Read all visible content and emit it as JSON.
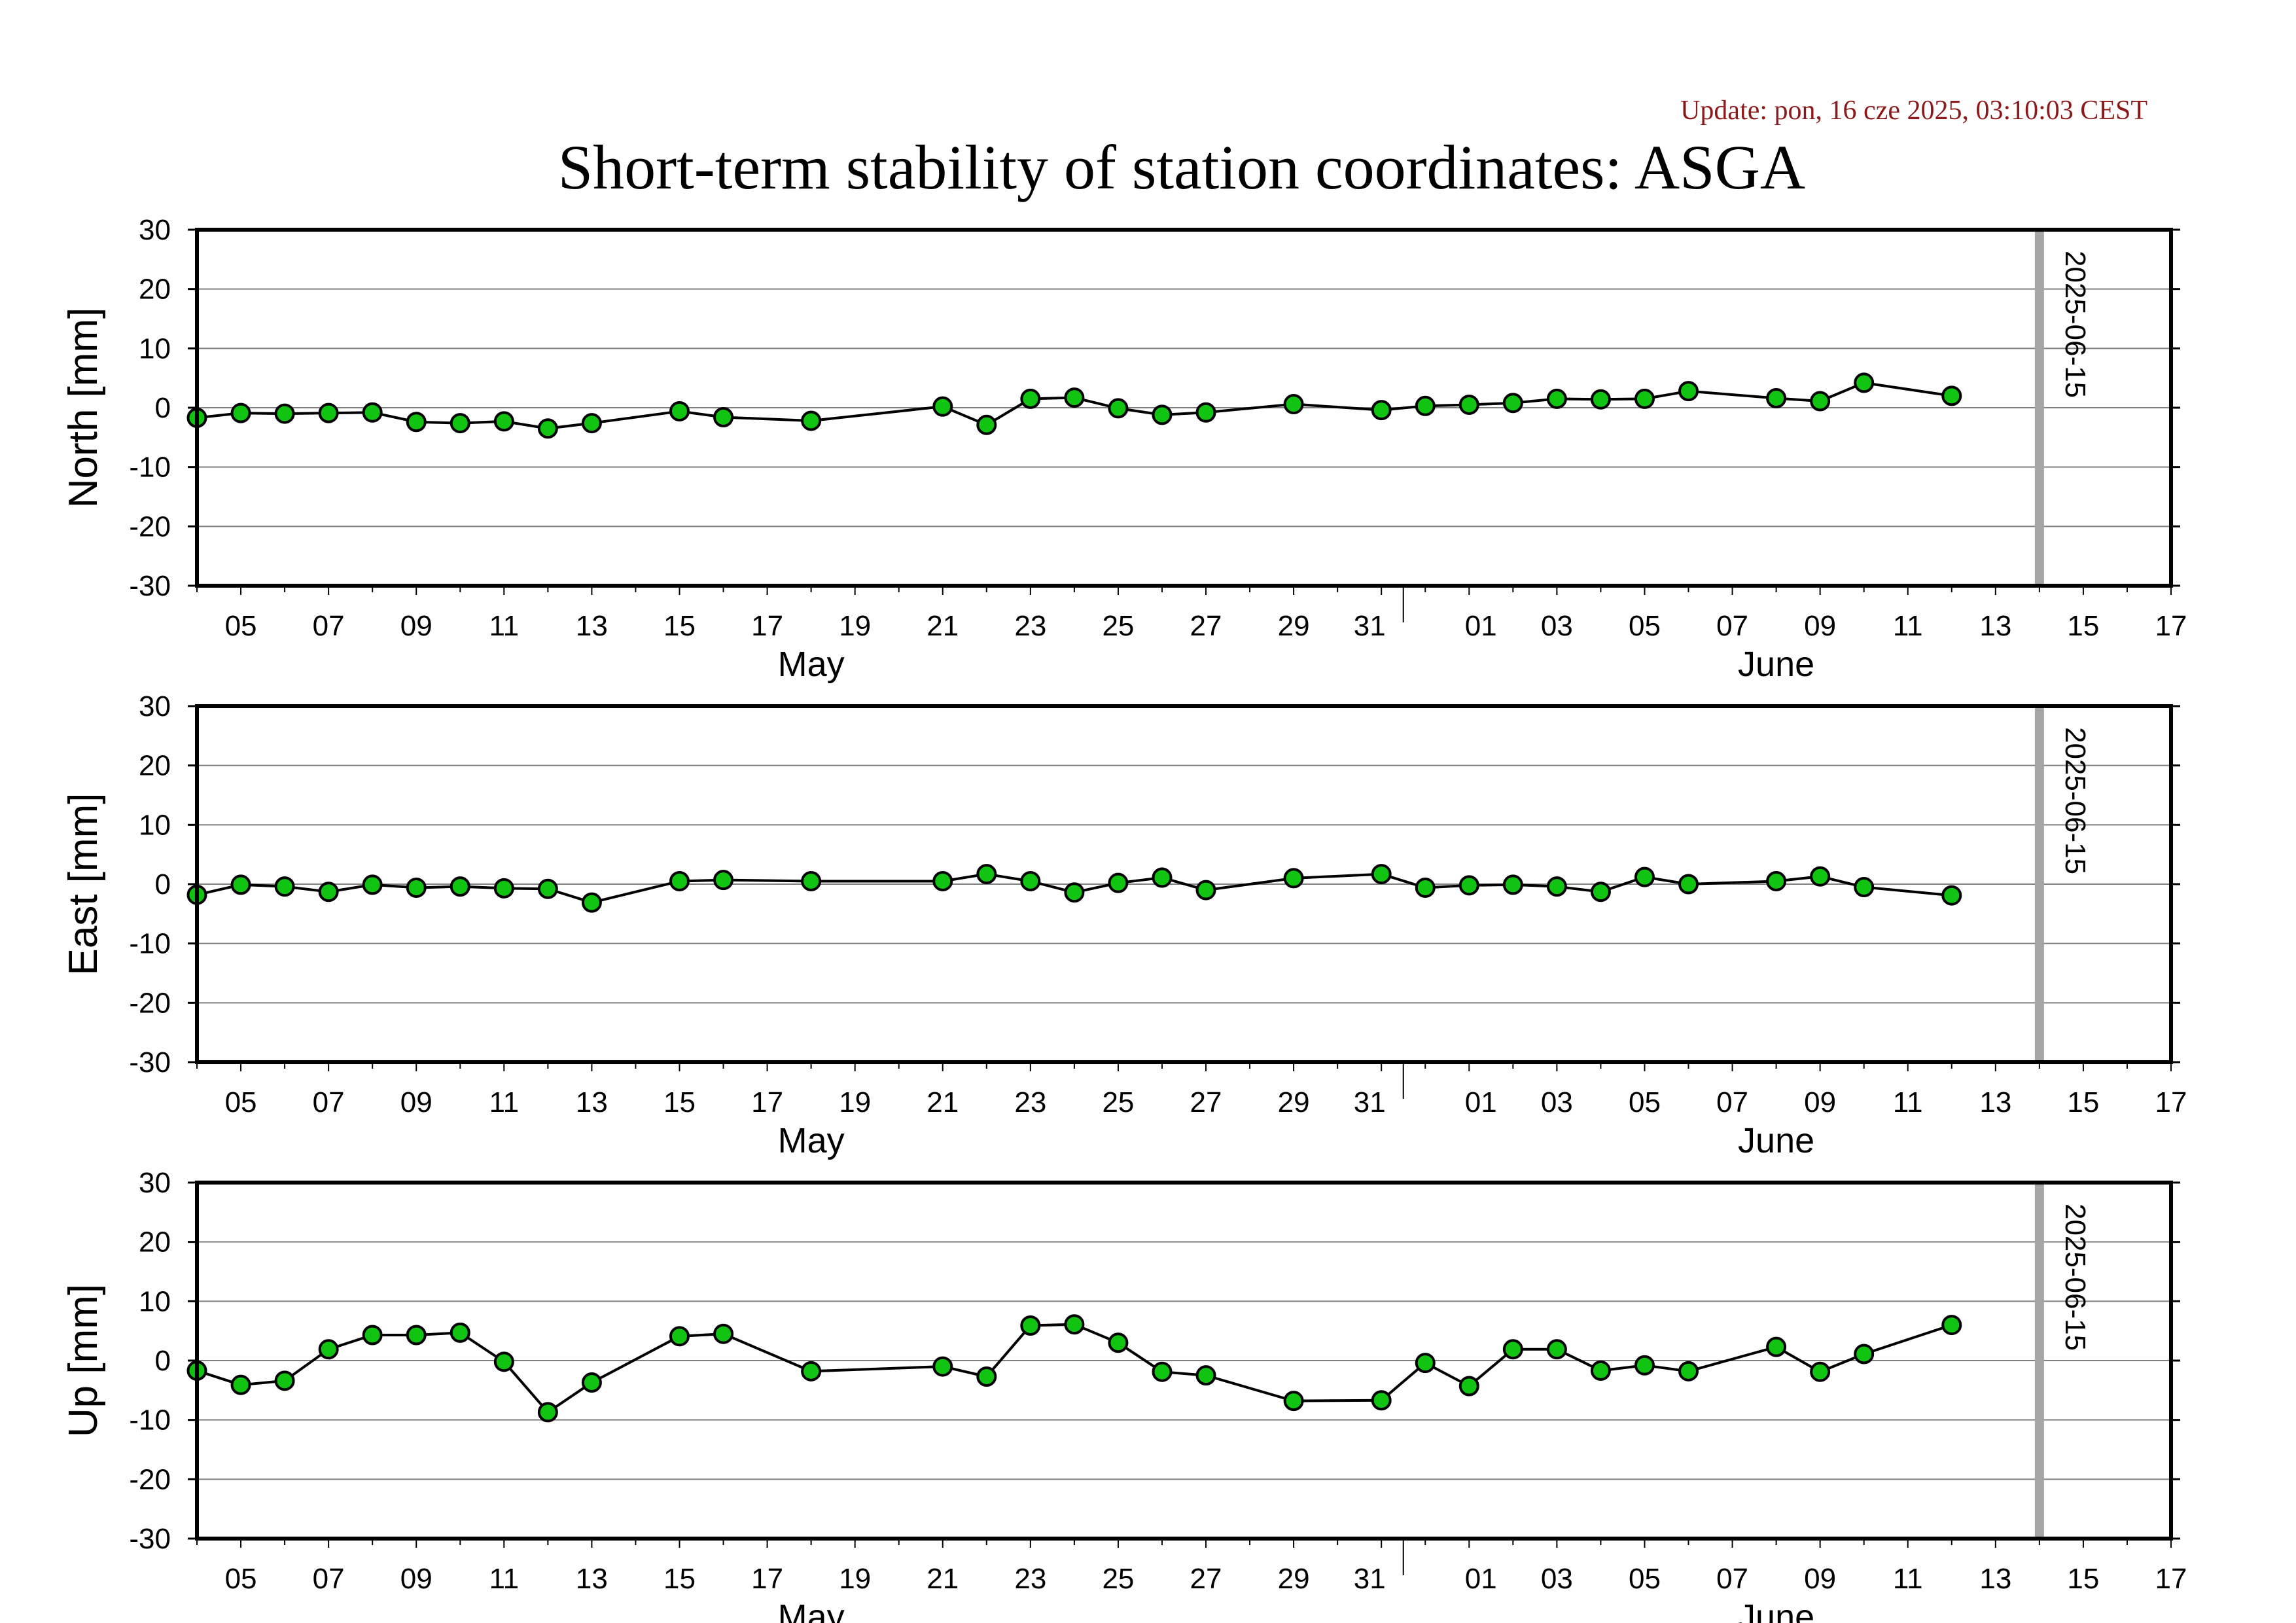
{
  "title": "Short-term stability of station coordinates: ASGA",
  "update_text": "Update: pon, 16 cze 2025, 03:10:03 CEST",
  "colors": {
    "marker_fill": "#12c412",
    "line": "#000000",
    "grid": "#7f7f7f",
    "vline": "#a6a6a6",
    "update_text": "#8b1a1a",
    "background": "#ffffff"
  },
  "chart_data": [
    {
      "type": "line",
      "ylabel": "North [mm]",
      "ylim": [
        -30,
        30
      ],
      "yticks": [
        -30,
        -20,
        -10,
        0,
        10,
        20,
        30
      ],
      "xlim": [
        "2025-05-04",
        "2025-06-18"
      ],
      "xtick_labels": [
        "05",
        "07",
        "09",
        "11",
        "13",
        "15",
        "17",
        "19",
        "21",
        "23",
        "25",
        "27",
        "29",
        "31",
        "01",
        "03",
        "05",
        "07",
        "09",
        "11",
        "13",
        "15",
        "17"
      ],
      "month_labels": [
        "May",
        "June"
      ],
      "vline_label": "2025-06-15",
      "grid": true,
      "points": [
        {
          "x": "2025-05-04",
          "y": -1.7
        },
        {
          "x": "2025-05-05",
          "y": -0.9
        },
        {
          "x": "2025-05-06",
          "y": -1.0
        },
        {
          "x": "2025-05-07",
          "y": -0.9
        },
        {
          "x": "2025-05-08",
          "y": -0.8
        },
        {
          "x": "2025-05-09",
          "y": -2.4
        },
        {
          "x": "2025-05-10",
          "y": -2.6
        },
        {
          "x": "2025-05-11",
          "y": -2.3
        },
        {
          "x": "2025-05-12",
          "y": -3.5
        },
        {
          "x": "2025-05-13",
          "y": -2.6
        },
        {
          "x": "2025-05-15",
          "y": -0.6
        },
        {
          "x": "2025-05-16",
          "y": -1.6
        },
        {
          "x": "2025-05-18",
          "y": -2.2
        },
        {
          "x": "2025-05-21",
          "y": 0.2
        },
        {
          "x": "2025-05-22",
          "y": -2.9
        },
        {
          "x": "2025-05-23",
          "y": 1.5
        },
        {
          "x": "2025-05-24",
          "y": 1.7
        },
        {
          "x": "2025-05-25",
          "y": -0.1
        },
        {
          "x": "2025-05-26",
          "y": -1.2
        },
        {
          "x": "2025-05-27",
          "y": -0.8
        },
        {
          "x": "2025-05-29",
          "y": 0.6
        },
        {
          "x": "2025-05-31",
          "y": -0.4
        },
        {
          "x": "2025-06-01",
          "y": 0.3
        },
        {
          "x": "2025-06-02",
          "y": 0.5
        },
        {
          "x": "2025-06-03",
          "y": 0.8
        },
        {
          "x": "2025-06-04",
          "y": 1.5
        },
        {
          "x": "2025-06-05",
          "y": 1.4
        },
        {
          "x": "2025-06-06",
          "y": 1.5
        },
        {
          "x": "2025-06-07",
          "y": 2.8
        },
        {
          "x": "2025-06-09",
          "y": 1.6
        },
        {
          "x": "2025-06-10",
          "y": 1.1
        },
        {
          "x": "2025-06-11",
          "y": 4.2
        },
        {
          "x": "2025-06-13",
          "y": 2.0
        }
      ]
    },
    {
      "type": "line",
      "ylabel": "East [mm]",
      "ylim": [
        -30,
        30
      ],
      "yticks": [
        -30,
        -20,
        -10,
        0,
        10,
        20,
        30
      ],
      "xlim": [
        "2025-05-04",
        "2025-06-18"
      ],
      "xtick_labels": [
        "05",
        "07",
        "09",
        "11",
        "13",
        "15",
        "17",
        "19",
        "21",
        "23",
        "25",
        "27",
        "29",
        "31",
        "01",
        "03",
        "05",
        "07",
        "09",
        "11",
        "13",
        "15",
        "17"
      ],
      "month_labels": [
        "May",
        "June"
      ],
      "vline_label": "2025-06-15",
      "grid": true,
      "points": [
        {
          "x": "2025-05-04",
          "y": -1.8
        },
        {
          "x": "2025-05-05",
          "y": -0.1
        },
        {
          "x": "2025-05-06",
          "y": -0.4
        },
        {
          "x": "2025-05-07",
          "y": -1.3
        },
        {
          "x": "2025-05-08",
          "y": -0.1
        },
        {
          "x": "2025-05-09",
          "y": -0.6
        },
        {
          "x": "2025-05-10",
          "y": -0.4
        },
        {
          "x": "2025-05-11",
          "y": -0.7
        },
        {
          "x": "2025-05-12",
          "y": -0.8
        },
        {
          "x": "2025-05-13",
          "y": -3.1
        },
        {
          "x": "2025-05-15",
          "y": 0.5
        },
        {
          "x": "2025-05-16",
          "y": 0.7
        },
        {
          "x": "2025-05-18",
          "y": 0.5
        },
        {
          "x": "2025-05-21",
          "y": 0.5
        },
        {
          "x": "2025-05-22",
          "y": 1.7
        },
        {
          "x": "2025-05-23",
          "y": 0.5
        },
        {
          "x": "2025-05-24",
          "y": -1.4
        },
        {
          "x": "2025-05-25",
          "y": 0.2
        },
        {
          "x": "2025-05-26",
          "y": 1.1
        },
        {
          "x": "2025-05-27",
          "y": -1.0
        },
        {
          "x": "2025-05-29",
          "y": 1.0
        },
        {
          "x": "2025-05-31",
          "y": 1.7
        },
        {
          "x": "2025-06-01",
          "y": -0.6
        },
        {
          "x": "2025-06-02",
          "y": -0.2
        },
        {
          "x": "2025-06-03",
          "y": -0.1
        },
        {
          "x": "2025-06-04",
          "y": -0.4
        },
        {
          "x": "2025-06-05",
          "y": -1.3
        },
        {
          "x": "2025-06-06",
          "y": 1.2
        },
        {
          "x": "2025-06-07",
          "y": 0.0
        },
        {
          "x": "2025-06-09",
          "y": 0.5
        },
        {
          "x": "2025-06-10",
          "y": 1.3
        },
        {
          "x": "2025-06-11",
          "y": -0.5
        },
        {
          "x": "2025-06-13",
          "y": -1.9
        }
      ]
    },
    {
      "type": "line",
      "ylabel": "Up [mm]",
      "ylim": [
        -30,
        30
      ],
      "yticks": [
        -30,
        -20,
        -10,
        0,
        10,
        20,
        30
      ],
      "xlim": [
        "2025-05-04",
        "2025-06-18"
      ],
      "xtick_labels": [
        "05",
        "07",
        "09",
        "11",
        "13",
        "15",
        "17",
        "19",
        "21",
        "23",
        "25",
        "27",
        "29",
        "31",
        "01",
        "03",
        "05",
        "07",
        "09",
        "11",
        "13",
        "15",
        "17"
      ],
      "month_labels": [
        "May",
        "June"
      ],
      "vline_label": "2025-06-15",
      "grid": true,
      "points": [
        {
          "x": "2025-05-04",
          "y": -1.7
        },
        {
          "x": "2025-05-05",
          "y": -4.1
        },
        {
          "x": "2025-05-06",
          "y": -3.4
        },
        {
          "x": "2025-05-07",
          "y": 1.9
        },
        {
          "x": "2025-05-08",
          "y": 4.3
        },
        {
          "x": "2025-05-09",
          "y": 4.3
        },
        {
          "x": "2025-05-10",
          "y": 4.7
        },
        {
          "x": "2025-05-11",
          "y": -0.2
        },
        {
          "x": "2025-05-12",
          "y": -8.7
        },
        {
          "x": "2025-05-13",
          "y": -3.7
        },
        {
          "x": "2025-05-15",
          "y": 4.1
        },
        {
          "x": "2025-05-16",
          "y": 4.5
        },
        {
          "x": "2025-05-18",
          "y": -1.8
        },
        {
          "x": "2025-05-21",
          "y": -1.0
        },
        {
          "x": "2025-05-22",
          "y": -2.7
        },
        {
          "x": "2025-05-23",
          "y": 5.9
        },
        {
          "x": "2025-05-24",
          "y": 6.1
        },
        {
          "x": "2025-05-25",
          "y": 3.0
        },
        {
          "x": "2025-05-26",
          "y": -1.9
        },
        {
          "x": "2025-05-27",
          "y": -2.5
        },
        {
          "x": "2025-05-29",
          "y": -6.8
        },
        {
          "x": "2025-05-31",
          "y": -6.7
        },
        {
          "x": "2025-06-01",
          "y": -0.4
        },
        {
          "x": "2025-06-02",
          "y": -4.3
        },
        {
          "x": "2025-06-03",
          "y": 1.9
        },
        {
          "x": "2025-06-04",
          "y": 1.9
        },
        {
          "x": "2025-06-05",
          "y": -1.7
        },
        {
          "x": "2025-06-06",
          "y": -0.8
        },
        {
          "x": "2025-06-07",
          "y": -1.8
        },
        {
          "x": "2025-06-09",
          "y": 2.3
        },
        {
          "x": "2025-06-10",
          "y": -1.9
        },
        {
          "x": "2025-06-11",
          "y": 1.1
        },
        {
          "x": "2025-06-13",
          "y": 6.0
        }
      ]
    }
  ]
}
